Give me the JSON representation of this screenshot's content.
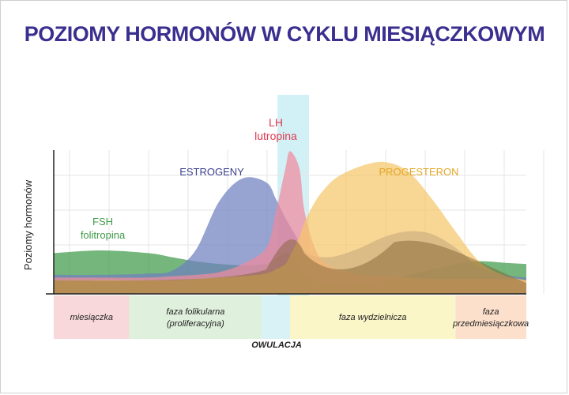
{
  "chart_data": {
    "type": "area",
    "title": "POZIOMY HORMONÓW W CYKLU MIESIĄCZKOWYM",
    "ylabel": "Poziomy hormonów",
    "xlabel": "",
    "ylim": [
      0,
      100
    ],
    "xlim": [
      0,
      100
    ],
    "grid": true,
    "x": [
      0,
      10,
      20,
      25,
      30,
      35,
      40,
      45,
      47,
      49,
      50,
      52,
      53,
      55,
      57,
      60,
      65,
      70,
      75,
      80,
      85,
      90,
      95,
      100
    ],
    "series": [
      {
        "name": "FSH",
        "subtitle": "folitropina",
        "color": "#3f9a48",
        "values": [
          30,
          32,
          30,
          27,
          24,
          22,
          21,
          22,
          26,
          30,
          28,
          20,
          14,
          10,
          8,
          6,
          7,
          10,
          14,
          18,
          22,
          24,
          23,
          22
        ]
      },
      {
        "name": "ESTROGENY",
        "subtitle": "",
        "color": "#6f7fbf",
        "values": [
          14,
          14,
          15,
          17,
          32,
          68,
          85,
          82,
          70,
          56,
          50,
          38,
          32,
          28,
          27,
          28,
          34,
          42,
          46,
          44,
          34,
          20,
          14,
          12
        ]
      },
      {
        "name": "LH",
        "subtitle": "lutropina",
        "color": "#f08a9c",
        "values": [
          12,
          12,
          12,
          13,
          14,
          16,
          22,
          34,
          60,
          92,
          105,
          92,
          62,
          36,
          24,
          18,
          14,
          13,
          12,
          11,
          11,
          11,
          11,
          10
        ]
      },
      {
        "name": "PROGESTERON",
        "subtitle": "",
        "color": "#f5c66a",
        "values": [
          10,
          10,
          10,
          10,
          11,
          12,
          13,
          15,
          18,
          22,
          28,
          42,
          52,
          66,
          76,
          86,
          94,
          97,
          90,
          70,
          46,
          24,
          14,
          10
        ]
      }
    ],
    "shading_band": {
      "from": 45,
      "to": 50,
      "color": "#cdeff5"
    }
  },
  "phases": [
    {
      "label": "miesiączka",
      "label2": "",
      "from": 0,
      "to": 16,
      "color": "#f9d8db"
    },
    {
      "label": "faza folikularna",
      "label2": "(proliferacyjna)",
      "from": 16,
      "to": 44,
      "color": "#dff0dc"
    },
    {
      "label": "",
      "label2": "",
      "from": 44,
      "to": 50,
      "color": "#d8f2f6"
    },
    {
      "label": "faza wydzielnicza",
      "label2": "",
      "from": 50,
      "to": 85,
      "color": "#fbf6c8"
    },
    {
      "label": "faza",
      "label2": "przedmiesiączkowa",
      "from": 85,
      "to": 100,
      "color": "#fde0cc"
    }
  ],
  "ovulation_label": "OWULACJA"
}
